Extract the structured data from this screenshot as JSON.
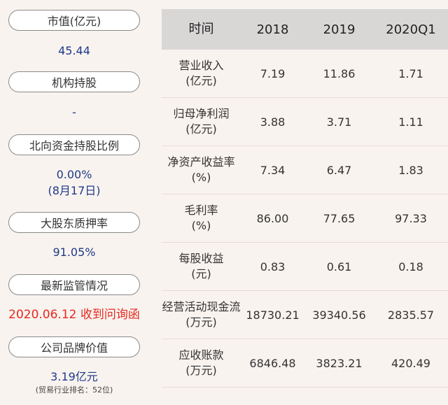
{
  "left_panel": {
    "items": [
      {
        "label": "市值(亿元)",
        "value": "45.44"
      },
      {
        "label": "机构持股",
        "value": "-"
      },
      {
        "label": "北向资金持股比例",
        "value": "0.00%",
        "value2": "(8月17日)"
      },
      {
        "label": "大股东质押率",
        "value": "91.05%"
      },
      {
        "label": "最新监管情况",
        "value": "2020.06.12 收到问询函"
      },
      {
        "label": "公司品牌价值",
        "value": "3.19亿元",
        "note": "(贸易行业排名：52位)"
      }
    ]
  },
  "table": {
    "headers": [
      "时间",
      "2018",
      "2019",
      "2020Q1"
    ],
    "rows": [
      {
        "label1": "营业收入",
        "label2": "(亿元)",
        "values": [
          "7.19",
          "11.86",
          "1.71"
        ]
      },
      {
        "label1": "归母净利润",
        "label2": "(亿元)",
        "values": [
          "3.88",
          "3.71",
          "1.11"
        ]
      },
      {
        "label1": "净资产收益率",
        "label2": "(%)",
        "values": [
          "7.34",
          "6.47",
          "1.83"
        ]
      },
      {
        "label1": "毛利率",
        "label2": "(%)",
        "values": [
          "86.00",
          "77.65",
          "97.33"
        ]
      },
      {
        "label1": "每股收益",
        "label2": "(元)",
        "values": [
          "0.83",
          "0.61",
          "0.18"
        ]
      },
      {
        "label1": "经营活动现金流",
        "label2": "(万元)",
        "values": [
          "18730.21",
          "39340.56",
          "2835.57"
        ]
      },
      {
        "label1": "应收账款",
        "label2": "(万元)",
        "values": [
          "6846.48",
          "3823.21",
          "420.49"
        ]
      }
    ]
  },
  "colors": {
    "value_blue": "#1f3a8a",
    "alert_red": "#e5291f",
    "header_gray": "#d9d6d6",
    "background": "#f9f3ef"
  }
}
